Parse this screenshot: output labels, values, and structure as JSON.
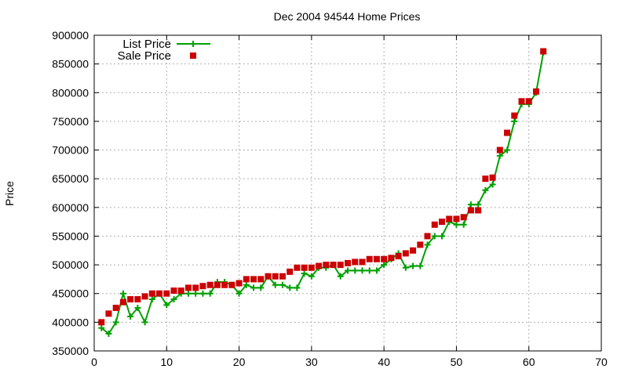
{
  "chart_data": {
    "type": "line",
    "title": "Dec 2004 94544 Home Prices",
    "xlabel": "",
    "ylabel": "Price",
    "xlim": [
      0,
      70
    ],
    "ylim": [
      350000,
      900000
    ],
    "x_ticks": [
      0,
      10,
      20,
      30,
      40,
      50,
      60,
      70
    ],
    "y_ticks": [
      350000,
      400000,
      450000,
      500000,
      550000,
      600000,
      650000,
      700000,
      750000,
      800000,
      850000,
      900000
    ],
    "grid": true,
    "legend_position": "top-left",
    "series": [
      {
        "name": "List Price",
        "style": "linespoints",
        "color": "#00a000",
        "marker": "plus",
        "x": [
          1,
          2,
          3,
          4,
          5,
          6,
          7,
          8,
          9,
          10,
          11,
          12,
          13,
          14,
          15,
          16,
          17,
          18,
          19,
          20,
          21,
          22,
          23,
          24,
          25,
          26,
          27,
          28,
          29,
          30,
          31,
          32,
          33,
          34,
          35,
          36,
          37,
          38,
          39,
          40,
          41,
          42,
          43,
          44,
          45,
          46,
          47,
          48,
          49,
          50,
          51,
          52,
          53,
          54,
          55,
          56,
          57,
          58,
          59,
          60,
          61,
          62
        ],
        "y": [
          390000,
          380000,
          400000,
          450000,
          410000,
          425000,
          400000,
          440000,
          450000,
          430000,
          440000,
          450000,
          450000,
          450000,
          450000,
          450000,
          470000,
          470000,
          465000,
          450000,
          465000,
          460000,
          460000,
          480000,
          465000,
          465000,
          460000,
          460000,
          485000,
          480000,
          495000,
          495000,
          500000,
          480000,
          490000,
          490000,
          490000,
          490000,
          490000,
          500000,
          510000,
          520000,
          495000,
          498000,
          498000,
          535000,
          550000,
          550000,
          575000,
          570000,
          570000,
          605000,
          605000,
          630000,
          640000,
          690000,
          700000,
          750000,
          780000,
          780000,
          800000,
          870000
        ]
      },
      {
        "name": "Sale Price",
        "style": "points",
        "color": "#cc0000",
        "marker": "square",
        "x": [
          1,
          2,
          3,
          4,
          5,
          6,
          7,
          8,
          9,
          10,
          11,
          12,
          13,
          14,
          15,
          16,
          17,
          18,
          19,
          20,
          21,
          22,
          23,
          24,
          25,
          26,
          27,
          28,
          29,
          30,
          31,
          32,
          33,
          34,
          35,
          36,
          37,
          38,
          39,
          40,
          41,
          42,
          43,
          44,
          45,
          46,
          47,
          48,
          49,
          50,
          51,
          52,
          53,
          54,
          55,
          56,
          57,
          58,
          59,
          60,
          61,
          62
        ],
        "y": [
          400000,
          415000,
          425000,
          435000,
          440000,
          440000,
          445000,
          450000,
          450000,
          450000,
          455000,
          455000,
          460000,
          460000,
          463000,
          465000,
          465000,
          465000,
          465000,
          468000,
          475000,
          475000,
          475000,
          480000,
          480000,
          480000,
          488000,
          495000,
          495000,
          495000,
          498000,
          500000,
          500000,
          500000,
          503000,
          505000,
          505000,
          510000,
          510000,
          510000,
          512000,
          515000,
          520000,
          525000,
          535000,
          550000,
          570000,
          575000,
          580000,
          580000,
          583000,
          595000,
          595000,
          650000,
          652000,
          700000,
          730000,
          760000,
          785000,
          785000,
          802000,
          872000
        ]
      }
    ]
  }
}
